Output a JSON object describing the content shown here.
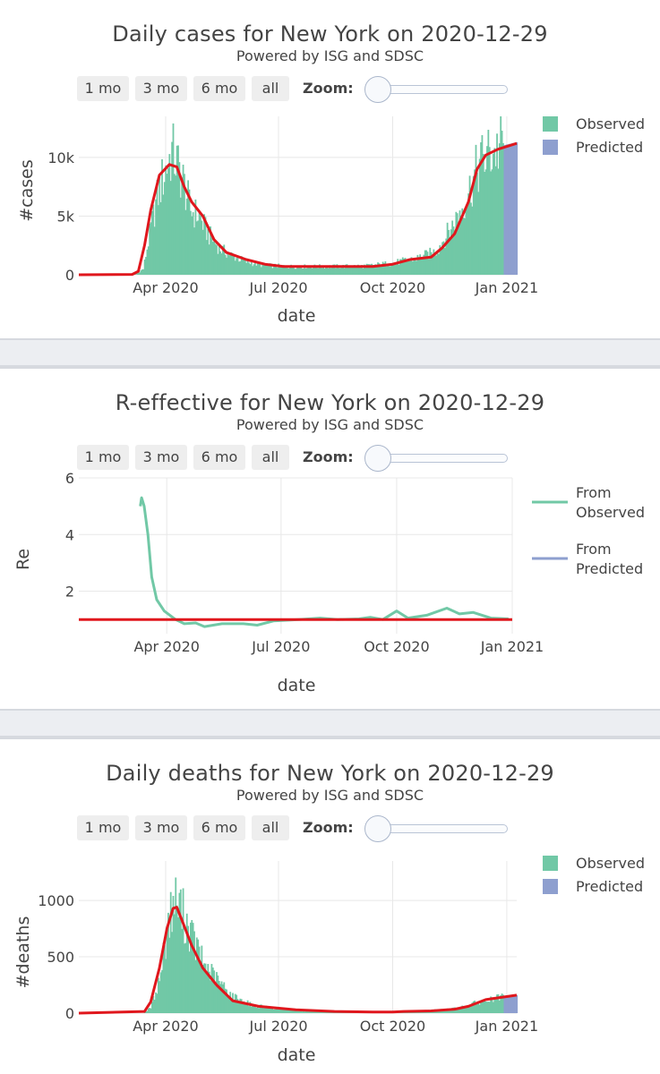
{
  "panels": [
    {
      "title": "Daily cases for New York on 2020-12-29",
      "subtitle": "Powered by ISG and SDSC",
      "buttons": [
        "1 mo",
        "3 mo",
        "6 mo",
        "all"
      ],
      "zoom_label": "Zoom:",
      "zoom_value": 0
    },
    {
      "title": "R-effective for New York on 2020-12-29",
      "subtitle": "Powered by ISG and SDSC",
      "buttons": [
        "1 mo",
        "3 mo",
        "6 mo",
        "all"
      ],
      "zoom_label": "Zoom:",
      "zoom_value": 0
    },
    {
      "title": "Daily deaths for New York on 2020-12-29",
      "subtitle": "Powered by ISG and SDSC",
      "buttons": [
        "1 mo",
        "3 mo",
        "6 mo",
        "all"
      ],
      "zoom_label": "Zoom:",
      "zoom_value": 0
    }
  ],
  "colors": {
    "observed": "#71c8a6",
    "predicted": "#8e9fcf",
    "fit": "#e0171d",
    "grid": "#e8e8e8",
    "text": "#444444"
  },
  "chart_data": [
    {
      "type": "bar",
      "xlabel": "date",
      "ylabel": "#cases",
      "x_tick_labels": [
        "Apr 2020",
        "Jul 2020",
        "Oct 2020",
        "Jan 2021"
      ],
      "x_tick_dates": [
        "2020-04-01",
        "2020-07-01",
        "2020-10-01",
        "2021-01-01"
      ],
      "y_tick_labels": [
        "0",
        "5k",
        "10k"
      ],
      "y_tick_values": [
        0,
        5000,
        10000
      ],
      "xlim": [
        "2020-01-22",
        "2021-01-09"
      ],
      "ylim": [
        0,
        13500
      ],
      "legend": [
        "Observed",
        "Predicted"
      ],
      "legend_position": "right",
      "observed": {
        "name": "Observed",
        "start": "2020-03-01",
        "end": "2020-12-29",
        "points": [
          [
            "2020-03-01",
            0
          ],
          [
            "2020-03-08",
            50
          ],
          [
            "2020-03-14",
            500
          ],
          [
            "2020-03-20",
            4000
          ],
          [
            "2020-03-26",
            7000
          ],
          [
            "2020-04-01",
            9000
          ],
          [
            "2020-04-06",
            10500
          ],
          [
            "2020-04-10",
            9500
          ],
          [
            "2020-04-15",
            8000
          ],
          [
            "2020-04-21",
            5500
          ],
          [
            "2020-04-28",
            5000
          ],
          [
            "2020-05-05",
            3500
          ],
          [
            "2020-05-15",
            2200
          ],
          [
            "2020-05-25",
            1600
          ],
          [
            "2020-06-05",
            1100
          ],
          [
            "2020-06-20",
            800
          ],
          [
            "2020-07-10",
            700
          ],
          [
            "2020-08-10",
            700
          ],
          [
            "2020-09-10",
            750
          ],
          [
            "2020-10-01",
            1000
          ],
          [
            "2020-10-20",
            1400
          ],
          [
            "2020-11-05",
            2000
          ],
          [
            "2020-11-20",
            4500
          ],
          [
            "2020-12-01",
            7000
          ],
          [
            "2020-12-10",
            9500
          ],
          [
            "2020-12-20",
            10500
          ],
          [
            "2020-12-29",
            11000
          ]
        ]
      },
      "predicted": {
        "name": "Predicted",
        "start": "2020-12-30",
        "end": "2021-01-09",
        "points": [
          [
            "2020-12-30",
            11050
          ],
          [
            "2021-01-09",
            11300
          ]
        ]
      },
      "fit": {
        "points": [
          [
            "2020-01-22",
            0
          ],
          [
            "2020-03-05",
            30
          ],
          [
            "2020-03-10",
            300
          ],
          [
            "2020-03-15",
            2500
          ],
          [
            "2020-03-20",
            5500
          ],
          [
            "2020-03-27",
            8500
          ],
          [
            "2020-04-04",
            9400
          ],
          [
            "2020-04-10",
            9200
          ],
          [
            "2020-04-16",
            7500
          ],
          [
            "2020-04-22",
            6200
          ],
          [
            "2020-05-01",
            5000
          ],
          [
            "2020-05-10",
            3000
          ],
          [
            "2020-05-20",
            1900
          ],
          [
            "2020-06-05",
            1300
          ],
          [
            "2020-06-20",
            900
          ],
          [
            "2020-07-05",
            700
          ],
          [
            "2020-08-15",
            700
          ],
          [
            "2020-09-15",
            700
          ],
          [
            "2020-10-01",
            900
          ],
          [
            "2020-10-15",
            1300
          ],
          [
            "2020-11-01",
            1500
          ],
          [
            "2020-11-10",
            2300
          ],
          [
            "2020-11-20",
            3500
          ],
          [
            "2020-12-01",
            6200
          ],
          [
            "2020-12-08",
            9000
          ],
          [
            "2020-12-15",
            10200
          ],
          [
            "2020-12-25",
            10700
          ],
          [
            "2021-01-09",
            11200
          ]
        ]
      }
    },
    {
      "type": "line",
      "xlabel": "date",
      "ylabel": "Re",
      "x_tick_labels": [
        "Apr 2020",
        "Jul 2020",
        "Oct 2020",
        "Jan 2021"
      ],
      "x_tick_dates": [
        "2020-04-01",
        "2020-07-01",
        "2020-10-01",
        "2021-01-01"
      ],
      "y_tick_labels": [
        "2",
        "4",
        "6"
      ],
      "y_tick_values": [
        2,
        4,
        6
      ],
      "xlim": [
        "2020-01-22",
        "2021-01-01"
      ],
      "ylim": [
        0.5,
        6
      ],
      "legend": [
        "From Observed",
        "From Predicted"
      ],
      "legend_position": "right",
      "series": [
        {
          "name": "From Observed",
          "points": [
            [
              "2020-03-11",
              5.0
            ],
            [
              "2020-03-12",
              5.3
            ],
            [
              "2020-03-14",
              5.0
            ],
            [
              "2020-03-17",
              4.0
            ],
            [
              "2020-03-20",
              2.5
            ],
            [
              "2020-03-24",
              1.7
            ],
            [
              "2020-03-30",
              1.3
            ],
            [
              "2020-04-08",
              1.0
            ],
            [
              "2020-04-15",
              0.85
            ],
            [
              "2020-04-24",
              0.88
            ],
            [
              "2020-05-01",
              0.75
            ],
            [
              "2020-05-15",
              0.85
            ],
            [
              "2020-06-01",
              0.85
            ],
            [
              "2020-06-12",
              0.8
            ],
            [
              "2020-06-25",
              0.95
            ],
            [
              "2020-07-15",
              1.0
            ],
            [
              "2020-08-01",
              1.05
            ],
            [
              "2020-08-15",
              1.0
            ],
            [
              "2020-09-01",
              1.02
            ],
            [
              "2020-09-10",
              1.08
            ],
            [
              "2020-09-20",
              1.0
            ],
            [
              "2020-10-01",
              1.3
            ],
            [
              "2020-10-10",
              1.05
            ],
            [
              "2020-10-25",
              1.15
            ],
            [
              "2020-11-10",
              1.4
            ],
            [
              "2020-11-20",
              1.2
            ],
            [
              "2020-12-01",
              1.25
            ],
            [
              "2020-12-15",
              1.05
            ],
            [
              "2020-12-29",
              1.02
            ]
          ]
        },
        {
          "name": "Re = 1",
          "points": [
            [
              "2020-01-22",
              1.0
            ],
            [
              "2021-01-01",
              1.0
            ]
          ]
        }
      ]
    },
    {
      "type": "bar",
      "xlabel": "date",
      "ylabel": "#deaths",
      "x_tick_labels": [
        "Apr 2020",
        "Jul 2020",
        "Oct 2020",
        "Jan 2021"
      ],
      "x_tick_dates": [
        "2020-04-01",
        "2020-07-01",
        "2020-10-01",
        "2021-01-01"
      ],
      "y_tick_labels": [
        "0",
        "500",
        "1000"
      ],
      "y_tick_values": [
        0,
        500,
        1000
      ],
      "xlim": [
        "2020-01-22",
        "2021-01-09"
      ],
      "ylim": [
        0,
        1350
      ],
      "legend": [
        "Observed",
        "Predicted"
      ],
      "legend_position": "right",
      "observed": {
        "name": "Observed",
        "start": "2020-03-14",
        "end": "2020-12-29",
        "points": [
          [
            "2020-03-14",
            0
          ],
          [
            "2020-03-20",
            50
          ],
          [
            "2020-03-27",
            300
          ],
          [
            "2020-04-03",
            800
          ],
          [
            "2020-04-08",
            1000
          ],
          [
            "2020-04-12",
            950
          ],
          [
            "2020-04-18",
            800
          ],
          [
            "2020-04-25",
            600
          ],
          [
            "2020-05-02",
            430
          ],
          [
            "2020-05-12",
            300
          ],
          [
            "2020-05-25",
            150
          ],
          [
            "2020-06-10",
            70
          ],
          [
            "2020-06-30",
            40
          ],
          [
            "2020-07-20",
            20
          ],
          [
            "2020-08-20",
            15
          ],
          [
            "2020-09-20",
            15
          ],
          [
            "2020-10-20",
            20
          ],
          [
            "2020-11-10",
            30
          ],
          [
            "2020-11-25",
            50
          ],
          [
            "2020-12-10",
            100
          ],
          [
            "2020-12-29",
            140
          ]
        ]
      },
      "predicted": {
        "name": "Predicted",
        "start": "2020-12-30",
        "end": "2021-01-09",
        "points": [
          [
            "2020-12-30",
            145
          ],
          [
            "2021-01-09",
            160
          ]
        ]
      },
      "fit": {
        "points": [
          [
            "2020-01-22",
            0
          ],
          [
            "2020-03-15",
            15
          ],
          [
            "2020-03-20",
            100
          ],
          [
            "2020-03-27",
            400
          ],
          [
            "2020-04-02",
            750
          ],
          [
            "2020-04-07",
            930
          ],
          [
            "2020-04-10",
            940
          ],
          [
            "2020-04-15",
            800
          ],
          [
            "2020-04-22",
            600
          ],
          [
            "2020-05-01",
            400
          ],
          [
            "2020-05-12",
            250
          ],
          [
            "2020-05-25",
            110
          ],
          [
            "2020-06-15",
            60
          ],
          [
            "2020-07-15",
            30
          ],
          [
            "2020-08-15",
            15
          ],
          [
            "2020-09-15",
            10
          ],
          [
            "2020-10-01",
            10
          ],
          [
            "2020-10-10",
            15
          ],
          [
            "2020-11-01",
            20
          ],
          [
            "2020-11-20",
            35
          ],
          [
            "2020-12-01",
            60
          ],
          [
            "2020-12-15",
            120
          ],
          [
            "2021-01-09",
            160
          ]
        ]
      }
    }
  ]
}
